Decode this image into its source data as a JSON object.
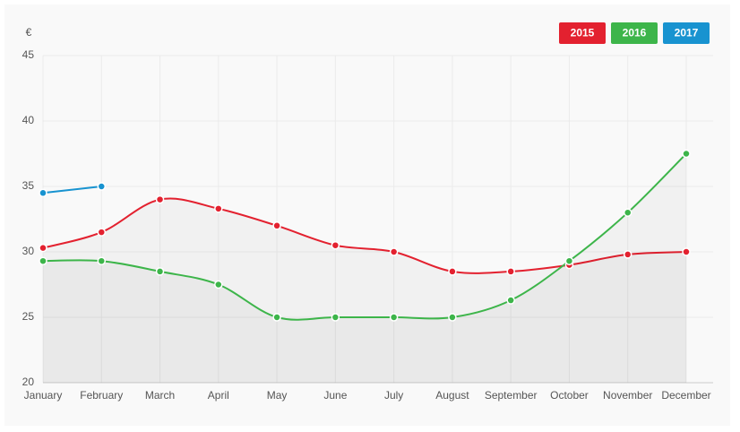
{
  "chart_data": {
    "type": "line",
    "y_label": "€",
    "categories": [
      "January",
      "February",
      "March",
      "April",
      "May",
      "June",
      "July",
      "August",
      "September",
      "October",
      "November",
      "December"
    ],
    "series": [
      {
        "name": "2015",
        "color": "#e3212f",
        "values": [
          30.3,
          31.5,
          34,
          33.3,
          32,
          30.5,
          30,
          28.5,
          28.5,
          29,
          29.8,
          30
        ]
      },
      {
        "name": "2016",
        "color": "#3db54a",
        "values": [
          29.3,
          29.3,
          28.5,
          27.5,
          25,
          25,
          25,
          25,
          26.3,
          29.3,
          33,
          37.5
        ]
      },
      {
        "name": "2017",
        "color": "#1893d0",
        "values": [
          34.5,
          35,
          null,
          null,
          null,
          null,
          null,
          null,
          null,
          null,
          null,
          null
        ]
      }
    ],
    "ylim": [
      20,
      45
    ],
    "yticks": [
      20,
      25,
      30,
      35,
      40,
      45
    ],
    "grid": true,
    "legend": "top-right"
  }
}
